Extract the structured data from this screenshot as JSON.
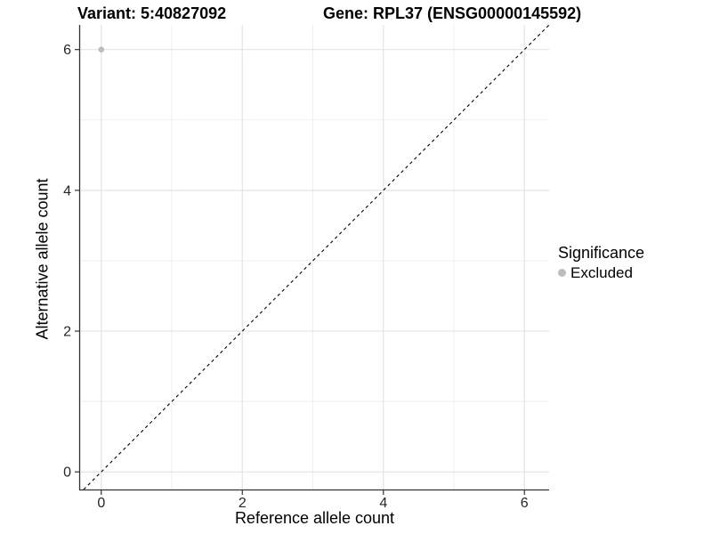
{
  "titles": {
    "left": "Variant: 5:40827092",
    "right": "Gene: RPL37 (ENSG00000145592)"
  },
  "legend": {
    "title": "Significance",
    "items": [
      {
        "label": "Excluded",
        "color": "#bdbdbd"
      }
    ]
  },
  "colors": {
    "background": "#ffffff",
    "axis_line": "#333333",
    "tick_text": "#262626",
    "grid_major": "#e4e4e4",
    "grid_minor": "#efefef",
    "reference_line": "#000000",
    "point_excluded": "#bdbdbd"
  },
  "chart_data": {
    "type": "scatter",
    "title": "Variant: 5:40827092    Gene: RPL37 (ENSG00000145592)",
    "xlabel": "Reference allele count",
    "ylabel": "Alternative allele count",
    "xlim": [
      -0.3,
      6.35
    ],
    "ylim": [
      -0.25,
      6.35
    ],
    "x_ticks": [
      0,
      2,
      4,
      6
    ],
    "y_ticks": [
      0,
      2,
      4,
      6
    ],
    "x_minor_ticks": [
      1,
      3,
      5
    ],
    "y_minor_ticks": [
      1,
      3,
      5
    ],
    "grid": true,
    "legend_position": "right",
    "legend_title": "Significance",
    "series": [
      {
        "name": "Excluded",
        "color": "#bdbdbd",
        "points": [
          {
            "x": 0,
            "y": 6
          }
        ]
      }
    ],
    "reference_line": {
      "type": "identity",
      "slope": 1,
      "intercept": 0,
      "style": "dashed",
      "color": "#000000"
    }
  }
}
